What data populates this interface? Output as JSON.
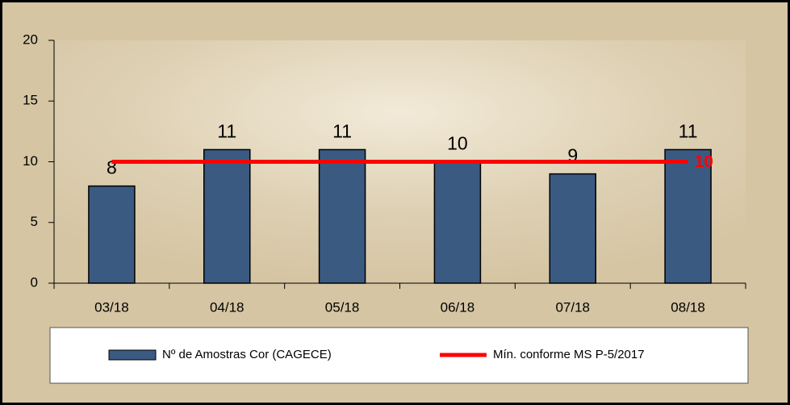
{
  "chart_data": {
    "type": "bar",
    "categories": [
      "03/18",
      "04/18",
      "05/18",
      "06/18",
      "07/18",
      "08/18"
    ],
    "series": [
      {
        "name": "Nº de Amostras Cor (CAGECE)",
        "type": "bar",
        "color": "#3b5a82",
        "values": [
          8,
          11,
          11,
          10,
          9,
          11
        ]
      },
      {
        "name": "Mín. conforme MS P-5/2017",
        "type": "line",
        "color": "#ff0000",
        "values": [
          10,
          10,
          10,
          10,
          10,
          10
        ],
        "value_labels": [
          null,
          null,
          null,
          null,
          null,
          "10"
        ]
      }
    ],
    "ylim": [
      0,
      20
    ],
    "yticks": [
      0,
      5,
      10,
      15,
      20
    ],
    "grid": false,
    "legend": "bottom"
  }
}
